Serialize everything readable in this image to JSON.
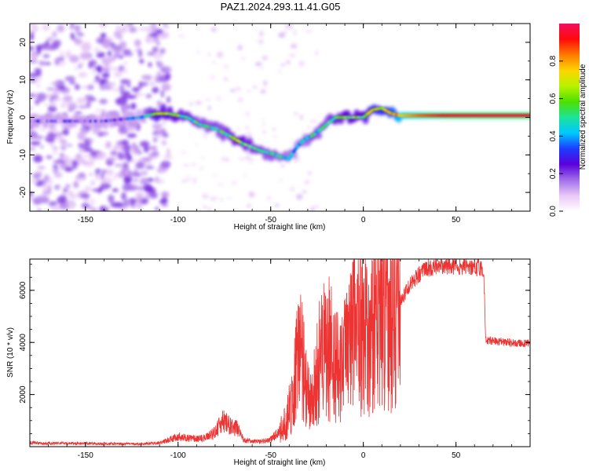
{
  "title": "PAZ1.2024.293.11.41.G05",
  "chart_data": [
    {
      "type": "heatmap",
      "title": "PAZ1.2024.293.11.41.G05",
      "xlabel": "Height of straight line (km)",
      "ylabel": "Frequency (Hz)",
      "xlim": [
        -180,
        90
      ],
      "ylim": [
        -25,
        25
      ],
      "xticks": [
        -150,
        -100,
        -50,
        0,
        50
      ],
      "yticks": [
        -20,
        -10,
        0,
        10,
        20
      ],
      "colorbar": {
        "label": "Normalized spectral amplitude",
        "range": [
          0,
          1
        ],
        "ticks": [
          0.0,
          0.2,
          0.4,
          0.6,
          0.8
        ],
        "colors": [
          "#ffffff",
          "#e9c7f7",
          "#a16de9",
          "#5a00dd",
          "#1c3cff",
          "#00c8ff",
          "#1ce39a",
          "#4ce000",
          "#b8f200",
          "#ffd400",
          "#ff7a00",
          "#ff0a0a",
          "#f01060"
        ]
      },
      "ridge": {
        "x": [
          -180,
          -160,
          -140,
          -120,
          -112,
          -105,
          -95,
          -88,
          -80,
          -72,
          -65,
          -60,
          -55,
          -50,
          -45,
          -40,
          -36,
          -32,
          -28,
          -25,
          -20,
          -15,
          -10,
          -5,
          0,
          5,
          10,
          15,
          20,
          30,
          50,
          90
        ],
        "frequency": [
          -1,
          -1,
          -1,
          0,
          1,
          1,
          0,
          -2,
          -3,
          -5,
          -7,
          -8,
          -9,
          -9.5,
          -10.5,
          -11,
          -8,
          -6,
          -5,
          -4,
          -2,
          0,
          0,
          0,
          0,
          2,
          2.5,
          1,
          0.5,
          0.5,
          0.5,
          0.5
        ],
        "amplitude": [
          0.05,
          0.08,
          0.08,
          0.2,
          0.5,
          0.45,
          0.4,
          0.35,
          0.35,
          0.4,
          0.45,
          0.4,
          0.35,
          0.35,
          0.3,
          0.3,
          0.25,
          0.3,
          0.35,
          0.35,
          0.35,
          0.4,
          0.45,
          0.45,
          0.45,
          0.55,
          0.55,
          0.6,
          0.75,
          0.85,
          0.95,
          0.95
        ]
      }
    },
    {
      "type": "line",
      "xlabel": "Height of straight line (km)",
      "ylabel": "SNR (10 * v/v)",
      "xlim": [
        -180,
        90
      ],
      "ylim": [
        0,
        7200
      ],
      "xticks": [
        -150,
        -100,
        -50,
        0,
        50
      ],
      "yticks": [
        2000,
        4000,
        6000
      ],
      "color": "#ee3333",
      "x": [
        -180,
        -160,
        -140,
        -120,
        -110,
        -100,
        -90,
        -85,
        -80,
        -76,
        -72,
        -68,
        -65,
        -60,
        -55,
        -50,
        -45,
        -42,
        -39,
        -36,
        -34,
        -32,
        -30,
        -28,
        -25,
        -22,
        -18,
        -15,
        -12,
        -8,
        -5,
        -2,
        0,
        5,
        10,
        15,
        20,
        25,
        30,
        35,
        40,
        50,
        60,
        65,
        66,
        70,
        80,
        90
      ],
      "y": [
        150,
        130,
        120,
        100,
        150,
        380,
        300,
        350,
        550,
        1000,
        800,
        700,
        280,
        200,
        200,
        280,
        600,
        900,
        1800,
        3000,
        3500,
        3000,
        2000,
        1500,
        3000,
        3600,
        3800,
        3400,
        3000,
        3600,
        4300,
        4600,
        4300,
        4600,
        5200,
        5000,
        5600,
        6200,
        6600,
        6850,
        6900,
        6950,
        6900,
        6850,
        4100,
        4050,
        4000,
        3950
      ]
    }
  ]
}
